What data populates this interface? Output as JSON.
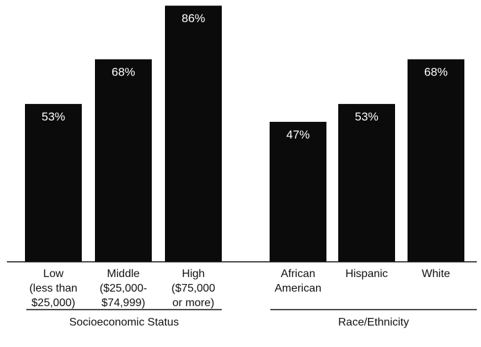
{
  "chart_data": {
    "type": "bar",
    "ylim": [
      0,
      100
    ],
    "grid": false,
    "bar_color": "#0b0b0b",
    "groups": [
      {
        "name": "Socioeconomic Status",
        "categories": [
          {
            "label_lines": [
              "Low",
              "(less than",
              "$25,000)"
            ],
            "value": 53,
            "value_label": "53%"
          },
          {
            "label_lines": [
              "Middle",
              "($25,000-",
              "$74,999)"
            ],
            "value": 68,
            "value_label": "68%"
          },
          {
            "label_lines": [
              "High",
              "($75,000",
              "or more)"
            ],
            "value": 86,
            "value_label": "86%"
          }
        ]
      },
      {
        "name": "Race/Ethnicity",
        "categories": [
          {
            "label_lines": [
              "African",
              "American"
            ],
            "value": 47,
            "value_label": "47%"
          },
          {
            "label_lines": [
              "Hispanic"
            ],
            "value": 53,
            "value_label": "53%"
          },
          {
            "label_lines": [
              "White"
            ],
            "value": 68,
            "value_label": "68%"
          }
        ]
      }
    ]
  }
}
